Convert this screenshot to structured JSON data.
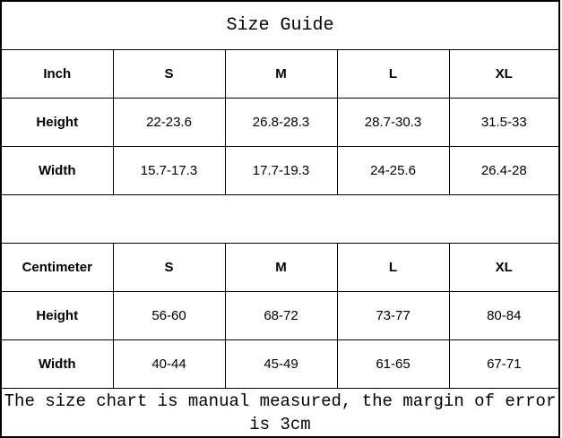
{
  "title": "Size Guide",
  "inch_table": {
    "header": [
      "Inch",
      "S",
      "M",
      "L",
      "XL"
    ],
    "rows": [
      [
        "Height",
        "22-23.6",
        "26.8-28.3",
        "28.7-30.3",
        "31.5-33"
      ],
      [
        "Width",
        "15.7-17.3",
        "17.7-19.3",
        "24-25.6",
        "26.4-28"
      ]
    ]
  },
  "cm_table": {
    "header": [
      "Centimeter",
      "S",
      "M",
      "L",
      "XL"
    ],
    "rows": [
      [
        "Height",
        "56-60",
        "68-72",
        "73-77",
        "80-84"
      ],
      [
        "Width",
        "40-44",
        "45-49",
        "61-65",
        "67-71"
      ]
    ]
  },
  "footnote": "The size chart is manual measured, the margin of error is 3cm"
}
